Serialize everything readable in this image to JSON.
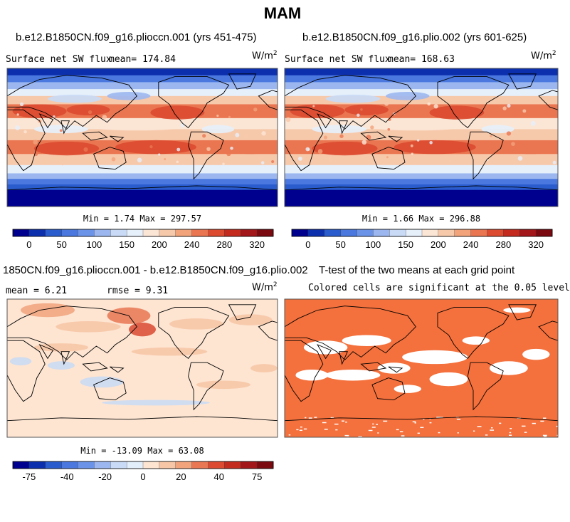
{
  "figure": {
    "season": "MAM",
    "units_base": "W/m",
    "units_exp": "2"
  },
  "colors": {
    "abs_levels": [
      "#00008f",
      "#0c2fae",
      "#2a5ccd",
      "#4a78de",
      "#6b94e8",
      "#9cb7f0",
      "#c8daf6",
      "#e6f0fb",
      "#fbe6d6",
      "#f7c9ab",
      "#f2a37a",
      "#ea7651",
      "#dc4a30",
      "#c42a1e",
      "#a3161a",
      "#7a0a10"
    ],
    "diff_levels": [
      "#00008f",
      "#0c2fae",
      "#2a5ccd",
      "#4a78de",
      "#6b94e8",
      "#9cb7f0",
      "#c8daf6",
      "#e3eefb",
      "#fde5d2",
      "#f7c6a6",
      "#f1a37c",
      "#e97753",
      "#db4a31",
      "#c32b1f",
      "#a2161a",
      "#7a0a10"
    ],
    "ttest_fill": "#f4703c",
    "ocean_abs": "#f7cfb4",
    "coast": "#000000"
  },
  "chart_data": [
    {
      "type": "heatmap",
      "id": "panel-1",
      "title": "b.e12.B1850CN.f09_g16.plioccn.001 (yrs 451-475)",
      "variable": "Surface net SW flux",
      "mean_label": "mean= 174.84",
      "stats": "Min =   1.74 Max = 297.57",
      "mean": 174.84,
      "min": 1.74,
      "max": 297.57,
      "colorbar_ticks": [
        "0",
        "50",
        "100",
        "150",
        "200",
        "240",
        "280",
        "320"
      ],
      "legend": "bottom"
    },
    {
      "type": "heatmap",
      "id": "panel-2",
      "title": "b.e12.B1850CN.f09_g16.plio.002 (yrs 601-625)",
      "variable": "Surface net SW flux",
      "mean_label": "mean= 168.63",
      "stats": "Min =   1.66 Max = 296.88",
      "mean": 168.63,
      "min": 1.66,
      "max": 296.88,
      "colorbar_ticks": [
        "0",
        "50",
        "100",
        "150",
        "200",
        "240",
        "280",
        "320"
      ],
      "legend": "bottom"
    },
    {
      "type": "heatmap",
      "id": "panel-3",
      "title": "1850CN.f09_g16.plioccn.001 - b.e12.B1850CN.f09_g16.plio.002",
      "mean_label": "mean =   6.21",
      "rmse_label": "rmse =   9.31",
      "stats": "Min = -13.09 Max = 63.08",
      "mean": 6.21,
      "rmse": 9.31,
      "min": -13.09,
      "max": 63.08,
      "colorbar_ticks": [
        "-75",
        "-40",
        "-20",
        "0",
        "20",
        "40",
        "75"
      ],
      "legend": "bottom"
    },
    {
      "type": "heatmap",
      "id": "panel-4",
      "title": "T-test of the two means at each grid point",
      "subtitle": "Colored cells are significant at the 0.05 level"
    }
  ]
}
